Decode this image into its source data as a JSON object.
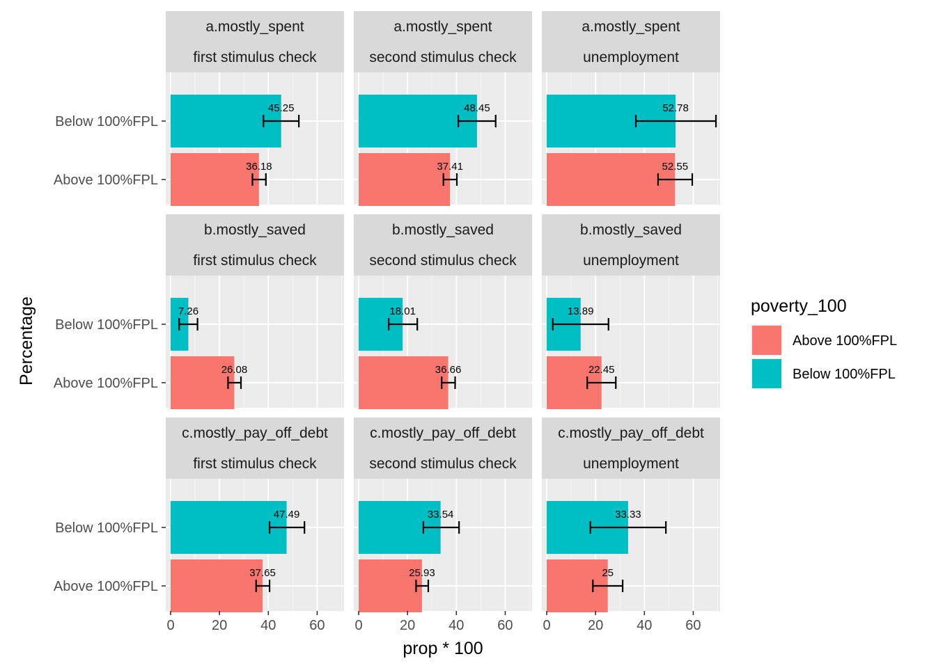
{
  "chart_data": {
    "type": "bar",
    "orientation": "horizontal",
    "xlabel": "prop * 100",
    "ylabel": "Percentage",
    "xlim": [
      -2,
      71
    ],
    "xticks": [
      0,
      20,
      40,
      60
    ],
    "categories": [
      "Below 100%FPL",
      "Above 100%FPL"
    ],
    "legend": {
      "title": "poverty_100",
      "position": "right",
      "entries": [
        {
          "label": "Above 100%FPL",
          "color": "#F8766D"
        },
        {
          "label": "Below 100%FPL",
          "color": "#00BFC4"
        }
      ]
    },
    "row_strips": [
      "a.mostly_spent",
      "b.mostly_saved",
      "c.mostly_pay_off_debt"
    ],
    "col_strips": [
      "first stimulus check",
      "second stimulus check",
      "unemployment"
    ],
    "panels": [
      {
        "row": 0,
        "col": 0,
        "bars": [
          {
            "group": "Below 100%FPL",
            "value": 45.25,
            "label": "45.25",
            "err": [
              38.0,
              52.5
            ]
          },
          {
            "group": "Above 100%FPL",
            "value": 36.18,
            "label": "36.18",
            "err": [
              33.5,
              39.0
            ]
          }
        ]
      },
      {
        "row": 0,
        "col": 1,
        "bars": [
          {
            "group": "Below 100%FPL",
            "value": 48.45,
            "label": "48.45",
            "err": [
              40.8,
              56.1
            ]
          },
          {
            "group": "Above 100%FPL",
            "value": 37.41,
            "label": "37.41",
            "err": [
              34.7,
              40.2
            ]
          }
        ]
      },
      {
        "row": 0,
        "col": 2,
        "bars": [
          {
            "group": "Below 100%FPL",
            "value": 52.78,
            "label": "52.78",
            "err": [
              36.5,
              69.3
            ]
          },
          {
            "group": "Above 100%FPL",
            "value": 52.55,
            "label": "52.55",
            "err": [
              45.6,
              59.6
            ]
          }
        ]
      },
      {
        "row": 1,
        "col": 0,
        "bars": [
          {
            "group": "Below 100%FPL",
            "value": 7.26,
            "label": "7.26",
            "err": [
              3.5,
              11.0
            ]
          },
          {
            "group": "Above 100%FPL",
            "value": 26.08,
            "label": "26.08",
            "err": [
              23.5,
              28.8
            ]
          }
        ]
      },
      {
        "row": 1,
        "col": 1,
        "bars": [
          {
            "group": "Below 100%FPL",
            "value": 18.01,
            "label": "18.01",
            "err": [
              12.3,
              24.0
            ]
          },
          {
            "group": "Above 100%FPL",
            "value": 36.66,
            "label": "36.66",
            "err": [
              34.0,
              39.5
            ]
          }
        ]
      },
      {
        "row": 1,
        "col": 2,
        "bars": [
          {
            "group": "Below 100%FPL",
            "value": 13.89,
            "label": "13.89",
            "err": [
              2.5,
              25.3
            ]
          },
          {
            "group": "Above 100%FPL",
            "value": 22.45,
            "label": "22.45",
            "err": [
              16.6,
              28.3
            ]
          }
        ]
      },
      {
        "row": 2,
        "col": 0,
        "bars": [
          {
            "group": "Below 100%FPL",
            "value": 47.49,
            "label": "47.49",
            "err": [
              40.5,
              54.8
            ]
          },
          {
            "group": "Above 100%FPL",
            "value": 37.65,
            "label": "37.65",
            "err": [
              35.0,
              40.5
            ]
          }
        ]
      },
      {
        "row": 2,
        "col": 1,
        "bars": [
          {
            "group": "Below 100%FPL",
            "value": 33.54,
            "label": "33.54",
            "err": [
              26.5,
              41.1
            ]
          },
          {
            "group": "Above 100%FPL",
            "value": 25.93,
            "label": "25.93",
            "err": [
              23.5,
              28.5
            ]
          }
        ]
      },
      {
        "row": 2,
        "col": 2,
        "bars": [
          {
            "group": "Below 100%FPL",
            "value": 33.33,
            "label": "33.33",
            "err": [
              17.9,
              48.8
            ]
          },
          {
            "group": "Above 100%FPL",
            "value": 25,
            "label": "25",
            "err": [
              18.9,
              31.1
            ]
          }
        ]
      }
    ]
  }
}
